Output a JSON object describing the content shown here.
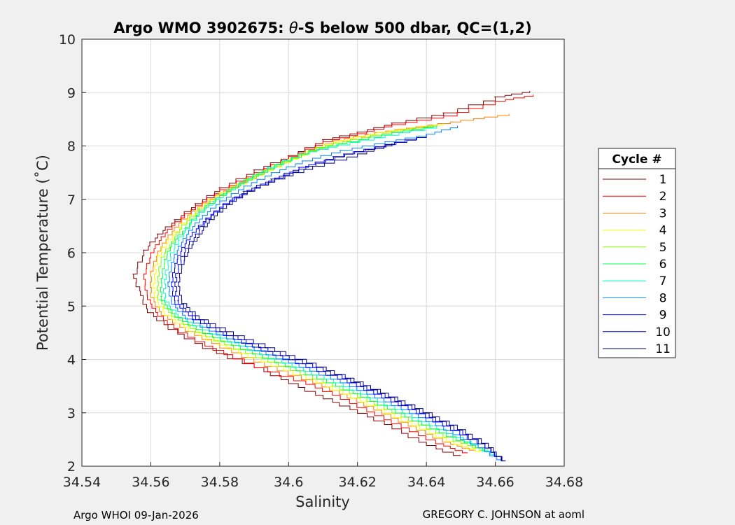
{
  "chart_data": {
    "type": "line",
    "title": "Argo WMO 3902675: θ-S below 500 dbar,  QC=(1,2)",
    "title_prefix": "Argo WMO 3902675: ",
    "title_theta": "θ",
    "title_suffix": "-S below 500 dbar,  QC=(1,2)",
    "xlabel": "Salinity",
    "ylabel": "Potential Temperature (˚C)",
    "xlim": [
      34.54,
      34.68
    ],
    "ylim": [
      2,
      10
    ],
    "xticks": [
      "34.54",
      "34.56",
      "34.58",
      "34.6",
      "34.62",
      "34.64",
      "34.66",
      "34.68"
    ],
    "yticks": [
      "2",
      "3",
      "4",
      "5",
      "6",
      "7",
      "8",
      "9",
      "10"
    ],
    "grid": true,
    "legend": {
      "title": "Cycle #",
      "placement": "right"
    },
    "series": [
      {
        "name": "1",
        "color": "#800000",
        "points": [
          [
            34.67,
            9.03
          ],
          [
            34.66,
            8.92
          ],
          [
            34.645,
            8.62
          ],
          [
            34.63,
            8.43
          ],
          [
            34.62,
            8.26
          ],
          [
            34.61,
            8.12
          ],
          [
            34.6,
            7.82
          ],
          [
            34.59,
            7.55
          ],
          [
            34.58,
            7.22
          ],
          [
            34.573,
            6.92
          ],
          [
            34.567,
            6.62
          ],
          [
            34.562,
            6.35
          ],
          [
            34.558,
            6.05
          ],
          [
            34.555,
            5.6
          ],
          [
            34.557,
            5.28
          ],
          [
            34.559,
            4.95
          ],
          [
            34.565,
            4.65
          ],
          [
            34.575,
            4.3
          ],
          [
            34.59,
            3.92
          ],
          [
            34.6,
            3.62
          ],
          [
            34.61,
            3.33
          ],
          [
            34.62,
            3.06
          ],
          [
            34.63,
            2.78
          ],
          [
            34.64,
            2.45
          ],
          [
            34.65,
            2.2
          ]
        ]
      },
      {
        "name": "2",
        "color": "#ff0000",
        "points": [
          [
            34.671,
            8.96
          ],
          [
            34.66,
            8.84
          ],
          [
            34.645,
            8.56
          ],
          [
            34.63,
            8.4
          ],
          [
            34.62,
            8.23
          ],
          [
            34.61,
            8.08
          ],
          [
            34.6,
            7.8
          ],
          [
            34.59,
            7.5
          ],
          [
            34.58,
            7.18
          ],
          [
            34.573,
            6.88
          ],
          [
            34.567,
            6.58
          ],
          [
            34.563,
            6.3
          ],
          [
            34.56,
            6.0
          ],
          [
            34.558,
            5.6
          ],
          [
            34.559,
            5.2
          ],
          [
            34.562,
            4.88
          ],
          [
            34.568,
            4.58
          ],
          [
            34.578,
            4.25
          ],
          [
            34.59,
            3.93
          ],
          [
            34.605,
            3.6
          ],
          [
            34.615,
            3.33
          ],
          [
            34.625,
            3.02
          ],
          [
            34.635,
            2.72
          ],
          [
            34.645,
            2.42
          ],
          [
            34.652,
            2.25
          ]
        ]
      },
      {
        "name": "3",
        "color": "#ff8000",
        "points": [
          [
            34.664,
            8.6
          ],
          [
            34.65,
            8.48
          ],
          [
            34.637,
            8.36
          ],
          [
            34.625,
            8.25
          ],
          [
            34.613,
            8.1
          ],
          [
            34.603,
            7.85
          ],
          [
            34.593,
            7.55
          ],
          [
            34.583,
            7.23
          ],
          [
            34.575,
            6.93
          ],
          [
            34.569,
            6.63
          ],
          [
            34.565,
            6.33
          ],
          [
            34.562,
            6.03
          ],
          [
            34.56,
            5.65
          ],
          [
            34.56,
            5.25
          ],
          [
            34.563,
            4.9
          ],
          [
            34.57,
            4.6
          ],
          [
            34.58,
            4.3
          ],
          [
            34.593,
            3.95
          ],
          [
            34.607,
            3.62
          ],
          [
            34.617,
            3.35
          ],
          [
            34.627,
            3.05
          ],
          [
            34.637,
            2.75
          ],
          [
            34.647,
            2.45
          ],
          [
            34.654,
            2.3
          ]
        ]
      },
      {
        "name": "4",
        "color": "#ffff00",
        "points": [
          [
            34.645,
            8.42
          ],
          [
            34.632,
            8.32
          ],
          [
            34.62,
            8.18
          ],
          [
            34.61,
            8.03
          ],
          [
            34.6,
            7.75
          ],
          [
            34.59,
            7.45
          ],
          [
            34.58,
            7.13
          ],
          [
            34.574,
            6.85
          ],
          [
            34.569,
            6.55
          ],
          [
            34.565,
            6.25
          ],
          [
            34.562,
            5.95
          ],
          [
            34.561,
            5.6
          ],
          [
            34.561,
            5.25
          ],
          [
            34.564,
            4.9
          ],
          [
            34.571,
            4.6
          ],
          [
            34.582,
            4.28
          ],
          [
            34.595,
            3.95
          ],
          [
            34.608,
            3.63
          ],
          [
            34.618,
            3.35
          ],
          [
            34.628,
            3.06
          ],
          [
            34.638,
            2.76
          ],
          [
            34.648,
            2.46
          ],
          [
            34.656,
            2.28
          ]
        ]
      },
      {
        "name": "5",
        "color": "#80ff00",
        "points": [
          [
            34.643,
            8.4
          ],
          [
            34.63,
            8.28
          ],
          [
            34.618,
            8.12
          ],
          [
            34.608,
            7.97
          ],
          [
            34.598,
            7.7
          ],
          [
            34.588,
            7.4
          ],
          [
            34.58,
            7.1
          ],
          [
            34.574,
            6.82
          ],
          [
            34.569,
            6.52
          ],
          [
            34.566,
            6.22
          ],
          [
            34.563,
            5.92
          ],
          [
            34.562,
            5.55
          ],
          [
            34.562,
            5.2
          ],
          [
            34.566,
            4.88
          ],
          [
            34.573,
            4.58
          ],
          [
            34.584,
            4.27
          ],
          [
            34.597,
            3.95
          ],
          [
            34.61,
            3.63
          ],
          [
            34.62,
            3.36
          ],
          [
            34.63,
            3.07
          ],
          [
            34.64,
            2.77
          ],
          [
            34.65,
            2.47
          ],
          [
            34.657,
            2.3
          ]
        ]
      },
      {
        "name": "6",
        "color": "#00ff40",
        "points": [
          [
            34.642,
            8.38
          ],
          [
            34.63,
            8.25
          ],
          [
            34.617,
            8.08
          ],
          [
            34.606,
            7.92
          ],
          [
            34.596,
            7.65
          ],
          [
            34.587,
            7.36
          ],
          [
            34.58,
            7.07
          ],
          [
            34.574,
            6.78
          ],
          [
            34.57,
            6.48
          ],
          [
            34.566,
            6.18
          ],
          [
            34.564,
            5.88
          ],
          [
            34.563,
            5.52
          ],
          [
            34.563,
            5.18
          ],
          [
            34.567,
            4.86
          ],
          [
            34.575,
            4.56
          ],
          [
            34.586,
            4.26
          ],
          [
            34.599,
            3.94
          ],
          [
            34.611,
            3.63
          ],
          [
            34.621,
            3.36
          ],
          [
            34.631,
            3.07
          ],
          [
            34.641,
            2.77
          ],
          [
            34.651,
            2.48
          ],
          [
            34.658,
            2.3
          ]
        ]
      },
      {
        "name": "7",
        "color": "#00ffc0",
        "points": [
          [
            34.643,
            8.38
          ],
          [
            34.628,
            8.2
          ],
          [
            34.614,
            8.02
          ],
          [
            34.603,
            7.85
          ],
          [
            34.594,
            7.6
          ],
          [
            34.586,
            7.32
          ],
          [
            34.579,
            7.03
          ],
          [
            34.574,
            6.75
          ],
          [
            34.57,
            6.45
          ],
          [
            34.567,
            6.15
          ],
          [
            34.565,
            5.85
          ],
          [
            34.564,
            5.5
          ],
          [
            34.564,
            5.15
          ],
          [
            34.568,
            4.85
          ],
          [
            34.577,
            4.55
          ],
          [
            34.588,
            4.25
          ],
          [
            34.601,
            3.93
          ],
          [
            34.613,
            3.63
          ],
          [
            34.623,
            3.35
          ],
          [
            34.633,
            3.06
          ],
          [
            34.643,
            2.76
          ],
          [
            34.653,
            2.46
          ],
          [
            34.66,
            2.22
          ]
        ]
      },
      {
        "name": "8",
        "color": "#0080ff",
        "points": [
          [
            34.649,
            8.38
          ],
          [
            34.64,
            8.22
          ],
          [
            34.628,
            8.08
          ],
          [
            34.615,
            7.92
          ],
          [
            34.604,
            7.72
          ],
          [
            34.595,
            7.5
          ],
          [
            34.587,
            7.25
          ],
          [
            34.58,
            6.97
          ],
          [
            34.575,
            6.7
          ],
          [
            34.571,
            6.42
          ],
          [
            34.568,
            6.12
          ],
          [
            34.566,
            5.82
          ],
          [
            34.565,
            5.45
          ],
          [
            34.566,
            5.1
          ],
          [
            34.57,
            4.83
          ],
          [
            34.579,
            4.53
          ],
          [
            34.59,
            4.24
          ],
          [
            34.603,
            3.93
          ],
          [
            34.615,
            3.63
          ],
          [
            34.625,
            3.35
          ],
          [
            34.635,
            3.06
          ],
          [
            34.645,
            2.76
          ],
          [
            34.655,
            2.42
          ],
          [
            34.662,
            2.12
          ]
        ]
      },
      {
        "name": "9",
        "color": "#0000ff",
        "points": [
          [
            34.64,
            8.2
          ],
          [
            34.628,
            8.03
          ],
          [
            34.616,
            7.85
          ],
          [
            34.605,
            7.62
          ],
          [
            34.596,
            7.4
          ],
          [
            34.588,
            7.17
          ],
          [
            34.581,
            6.92
          ],
          [
            34.576,
            6.65
          ],
          [
            34.572,
            6.38
          ],
          [
            34.569,
            6.1
          ],
          [
            34.567,
            5.8
          ],
          [
            34.566,
            5.45
          ],
          [
            34.567,
            5.1
          ],
          [
            34.572,
            4.82
          ],
          [
            34.581,
            4.52
          ],
          [
            34.592,
            4.23
          ],
          [
            34.605,
            3.92
          ],
          [
            34.617,
            3.63
          ],
          [
            34.627,
            3.35
          ],
          [
            34.637,
            3.06
          ],
          [
            34.647,
            2.75
          ],
          [
            34.657,
            2.42
          ],
          [
            34.663,
            2.1
          ]
        ]
      },
      {
        "name": "10",
        "color": "#0000c0",
        "points": [
          [
            34.637,
            8.15
          ],
          [
            34.625,
            7.98
          ],
          [
            34.613,
            7.8
          ],
          [
            34.603,
            7.6
          ],
          [
            34.595,
            7.38
          ],
          [
            34.587,
            7.15
          ],
          [
            34.581,
            6.9
          ],
          [
            34.576,
            6.63
          ],
          [
            34.573,
            6.35
          ],
          [
            34.57,
            6.08
          ],
          [
            34.568,
            5.78
          ],
          [
            34.567,
            5.45
          ],
          [
            34.568,
            5.1
          ],
          [
            34.573,
            4.82
          ],
          [
            34.582,
            4.52
          ],
          [
            34.594,
            4.22
          ],
          [
            34.607,
            3.92
          ],
          [
            34.618,
            3.64
          ],
          [
            34.628,
            3.36
          ],
          [
            34.638,
            3.07
          ],
          [
            34.648,
            2.76
          ],
          [
            34.657,
            2.42
          ],
          [
            34.663,
            2.1
          ]
        ]
      },
      {
        "name": "11",
        "color": "#000080",
        "points": [
          [
            34.63,
            8.05
          ],
          [
            34.62,
            7.85
          ],
          [
            34.607,
            7.62
          ],
          [
            34.596,
            7.38
          ],
          [
            34.588,
            7.15
          ],
          [
            34.582,
            6.9
          ],
          [
            34.577,
            6.62
          ],
          [
            34.574,
            6.35
          ],
          [
            34.571,
            6.08
          ],
          [
            34.569,
            5.78
          ],
          [
            34.568,
            5.45
          ],
          [
            34.569,
            5.12
          ],
          [
            34.574,
            4.82
          ],
          [
            34.584,
            4.52
          ],
          [
            34.596,
            4.22
          ],
          [
            34.608,
            3.93
          ],
          [
            34.619,
            3.65
          ],
          [
            34.629,
            3.37
          ],
          [
            34.639,
            3.08
          ],
          [
            34.649,
            2.77
          ],
          [
            34.658,
            2.43
          ],
          [
            34.663,
            2.1
          ]
        ]
      }
    ]
  },
  "footer": {
    "left": "Argo WHOI 09-Jan-2026",
    "right": "GREGORY C. JOHNSON at aoml"
  }
}
